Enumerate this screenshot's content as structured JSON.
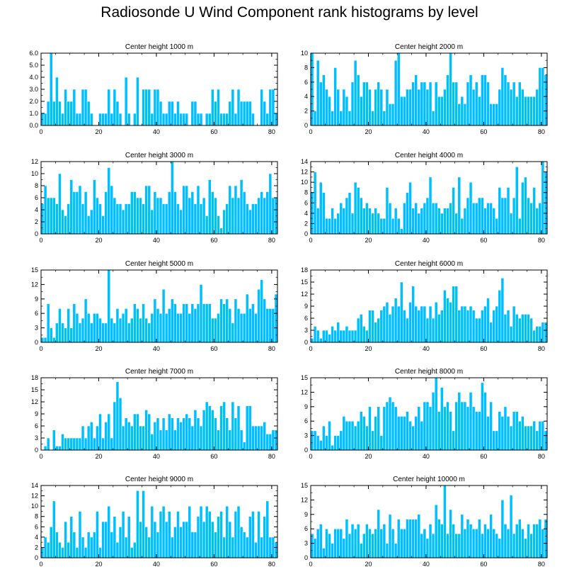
{
  "figure_title": "Radiosonde U Wind Component rank histograms by level",
  "colors": {
    "bar_fill": "#00bfff",
    "bar_stroke": "#ffffff",
    "axis": "#000000"
  },
  "chart_data": [
    {
      "type": "bar",
      "title": "Center height 1000 m",
      "xlim": [
        0,
        82
      ],
      "ylim": [
        0,
        6
      ],
      "xticks": [
        0,
        20,
        40,
        60,
        80
      ],
      "yticks": [
        0,
        1,
        2,
        3,
        4,
        5,
        6
      ],
      "ytick_labels": [
        "0.0",
        "1.0",
        "2.0",
        "3.0",
        "4.0",
        "5.0",
        "6.0"
      ],
      "values": [
        1,
        1,
        2,
        6,
        2,
        4,
        2,
        1,
        3,
        2,
        2,
        3,
        1,
        1,
        3,
        3,
        2,
        1,
        0,
        0,
        1,
        1,
        1,
        3,
        1,
        3,
        2,
        1,
        0,
        4,
        1,
        0,
        1,
        4,
        0,
        3,
        3,
        3,
        1,
        3,
        3,
        2,
        1,
        1,
        2,
        2,
        1,
        2,
        1,
        1,
        1,
        0,
        2,
        2,
        1,
        1,
        0,
        1,
        1,
        3,
        2,
        3,
        1,
        1,
        1,
        2,
        3,
        1,
        3,
        2,
        2,
        2,
        2,
        1,
        0,
        0,
        3,
        2,
        1,
        3,
        3,
        1
      ]
    },
    {
      "type": "bar",
      "title": "Center height 2000 m",
      "xlim": [
        0,
        82
      ],
      "ylim": [
        0,
        10
      ],
      "xticks": [
        0,
        20,
        40,
        60,
        80
      ],
      "yticks": [
        0,
        2,
        4,
        6,
        8,
        10
      ],
      "ytick_labels": [
        "0",
        "2",
        "4",
        "6",
        "8",
        "10"
      ],
      "values": [
        10,
        2,
        9,
        6,
        7,
        5,
        4,
        2,
        8,
        5,
        2,
        5,
        4,
        2,
        6,
        9,
        7,
        4,
        6,
        6,
        5,
        2,
        5,
        6,
        5,
        2,
        5,
        3,
        3,
        9,
        10,
        4,
        4,
        5,
        5,
        6,
        7,
        5,
        6,
        6,
        5,
        6,
        2,
        6,
        4,
        4,
        5,
        7,
        10,
        6,
        6,
        3,
        4,
        3,
        6,
        7,
        5,
        6,
        4,
        7,
        7,
        6,
        3,
        3,
        3,
        5,
        8,
        7,
        6,
        5,
        6,
        4,
        6,
        5,
        4,
        4,
        4,
        4,
        5,
        8,
        8,
        7
      ]
    },
    {
      "type": "bar",
      "title": "Center height 3000 m",
      "xlim": [
        0,
        82
      ],
      "ylim": [
        0,
        12
      ],
      "xticks": [
        0,
        20,
        40,
        60,
        80
      ],
      "yticks": [
        0,
        2,
        4,
        6,
        8,
        10,
        12
      ],
      "ytick_labels": [
        "0",
        "2",
        "4",
        "6",
        "8",
        "10",
        "12"
      ],
      "values": [
        5,
        8,
        6,
        6,
        6,
        5,
        10,
        4,
        3,
        5,
        9,
        7,
        7,
        8,
        5,
        7,
        3,
        4,
        9,
        6,
        5,
        3,
        7,
        11,
        8,
        6,
        5,
        5,
        4,
        5,
        5,
        7,
        7,
        6,
        6,
        5,
        8,
        8,
        4,
        7,
        6,
        6,
        5,
        5,
        7,
        12,
        7,
        5,
        4,
        8,
        8,
        6,
        7,
        5,
        8,
        5,
        6,
        3,
        9,
        7,
        6,
        3,
        1,
        4,
        5,
        8,
        6,
        8,
        6,
        9,
        7,
        5,
        4,
        5,
        5,
        6,
        7,
        6,
        7,
        10,
        6,
        6
      ]
    },
    {
      "type": "bar",
      "title": "Center height 4000 m",
      "xlim": [
        0,
        82
      ],
      "ylim": [
        0,
        14
      ],
      "xticks": [
        0,
        20,
        40,
        60,
        80
      ],
      "yticks": [
        0,
        2,
        4,
        6,
        8,
        10,
        12,
        14
      ],
      "ytick_labels": [
        "0",
        "2",
        "4",
        "6",
        "8",
        "10",
        "12",
        "14"
      ],
      "values": [
        8,
        12,
        5,
        10,
        8,
        3,
        3,
        5,
        3,
        4,
        6,
        5,
        7,
        8,
        4,
        10,
        9,
        7,
        5,
        6,
        5,
        4,
        5,
        4,
        3,
        3,
        9,
        6,
        3,
        5,
        3,
        1,
        6,
        8,
        10,
        5,
        6,
        4,
        5,
        6,
        7,
        11,
        6,
        6,
        5,
        4,
        5,
        5,
        6,
        9,
        4,
        11,
        3,
        5,
        7,
        10,
        6,
        6,
        7,
        7,
        5,
        6,
        6,
        5,
        3,
        9,
        7,
        7,
        9,
        4,
        7,
        13,
        3,
        10,
        11,
        7,
        6,
        9,
        5,
        6,
        14,
        12
      ]
    },
    {
      "type": "bar",
      "title": "Center height 5000 m",
      "xlim": [
        0,
        82
      ],
      "ylim": [
        0,
        15
      ],
      "xticks": [
        0,
        20,
        40,
        60,
        80
      ],
      "yticks": [
        0,
        3,
        6,
        9,
        12,
        15
      ],
      "ytick_labels": [
        "0",
        "3",
        "6",
        "9",
        "12",
        "15"
      ],
      "values": [
        1,
        1,
        8,
        3,
        1,
        4,
        7,
        4,
        3,
        7,
        3,
        8,
        6,
        4,
        5,
        9,
        6,
        4,
        6,
        6,
        5,
        4,
        4,
        15,
        5,
        4,
        7,
        5,
        6,
        7,
        4,
        5,
        8,
        7,
        5,
        8,
        5,
        4,
        6,
        9,
        7,
        6,
        11,
        6,
        7,
        9,
        8,
        6,
        6,
        8,
        8,
        6,
        8,
        7,
        8,
        12,
        8,
        8,
        8,
        5,
        5,
        6,
        9,
        8,
        9,
        7,
        4,
        9,
        7,
        6,
        6,
        10,
        7,
        8,
        6,
        11,
        13,
        9,
        7,
        7,
        7,
        10
      ]
    },
    {
      "type": "bar",
      "title": "Center height 6000 m",
      "xlim": [
        0,
        82
      ],
      "ylim": [
        0,
        18
      ],
      "xticks": [
        0,
        20,
        40,
        60,
        80
      ],
      "yticks": [
        0,
        3,
        6,
        9,
        12,
        15,
        18
      ],
      "ytick_labels": [
        "0",
        "3",
        "6",
        "9",
        "12",
        "15",
        "18"
      ],
      "values": [
        1,
        4,
        3,
        1,
        3,
        3,
        2,
        4,
        3,
        5,
        3,
        3,
        4,
        3,
        3,
        3,
        6,
        7,
        4,
        3,
        8,
        8,
        5,
        6,
        8,
        9,
        10,
        7,
        9,
        11,
        9,
        15,
        8,
        6,
        10,
        14,
        9,
        8,
        9,
        9,
        6,
        9,
        6,
        10,
        7,
        8,
        13,
        11,
        10,
        14,
        14,
        8,
        9,
        9,
        8,
        9,
        8,
        6,
        6,
        8,
        9,
        11,
        5,
        8,
        9,
        13,
        16,
        7,
        8,
        4,
        9,
        7,
        6,
        7,
        7,
        7,
        6,
        3,
        4,
        4,
        5,
        5
      ]
    },
    {
      "type": "bar",
      "title": "Center height 7000 m",
      "xlim": [
        0,
        82
      ],
      "ylim": [
        0,
        18
      ],
      "xticks": [
        0,
        20,
        40,
        60,
        80
      ],
      "yticks": [
        0,
        3,
        6,
        9,
        12,
        15,
        18
      ],
      "ytick_labels": [
        "0",
        "3",
        "6",
        "9",
        "12",
        "15",
        "18"
      ],
      "values": [
        0,
        1,
        3,
        0,
        5,
        1,
        1,
        4,
        3,
        3,
        3,
        3,
        3,
        3,
        6,
        3,
        6,
        7,
        3,
        6,
        9,
        3,
        7,
        9,
        3,
        12,
        17,
        13,
        6,
        8,
        7,
        6,
        9,
        9,
        6,
        6,
        10,
        9,
        4,
        7,
        8,
        5,
        8,
        5,
        9,
        8,
        5,
        8,
        7,
        8,
        9,
        8,
        6,
        10,
        8,
        6,
        10,
        12,
        11,
        10,
        8,
        5,
        11,
        12,
        8,
        5,
        12,
        8,
        11,
        5,
        2,
        11,
        11,
        6,
        6,
        6,
        6,
        7,
        4,
        4,
        5,
        5
      ]
    },
    {
      "type": "bar",
      "title": "Center height 8000 m",
      "xlim": [
        0,
        82
      ],
      "ylim": [
        0,
        15
      ],
      "xticks": [
        0,
        20,
        40,
        60,
        80
      ],
      "yticks": [
        0,
        3,
        6,
        9,
        12,
        15
      ],
      "ytick_labels": [
        "0",
        "3",
        "6",
        "9",
        "12",
        "15"
      ],
      "values": [
        4,
        4,
        3,
        2,
        5,
        3,
        6,
        1,
        3,
        3,
        4,
        7,
        6,
        6,
        6,
        5,
        6,
        8,
        7,
        5,
        9,
        4,
        7,
        9,
        3,
        9,
        10,
        11,
        10,
        9,
        7,
        7,
        7,
        8,
        6,
        5,
        7,
        9,
        6,
        10,
        10,
        9,
        12,
        15,
        8,
        13,
        9,
        10,
        8,
        4,
        10,
        12,
        10,
        10,
        9,
        12,
        9,
        8,
        8,
        14,
        12,
        7,
        10,
        4,
        4,
        8,
        7,
        9,
        7,
        5,
        8,
        8,
        6,
        7,
        5,
        5,
        5,
        6,
        4,
        6,
        6,
        4
      ]
    },
    {
      "type": "bar",
      "title": "Center height 9000 m",
      "xlim": [
        0,
        82
      ],
      "ylim": [
        0,
        14
      ],
      "xticks": [
        0,
        20,
        40,
        60,
        80
      ],
      "yticks": [
        0,
        2,
        4,
        6,
        8,
        10,
        12,
        14
      ],
      "ytick_labels": [
        "0",
        "2",
        "4",
        "6",
        "8",
        "10",
        "12",
        "14"
      ],
      "values": [
        2,
        4,
        3,
        6,
        11,
        5,
        3,
        2,
        7,
        3,
        8,
        5,
        2,
        9,
        4,
        2,
        5,
        4,
        5,
        9,
        2,
        7,
        7,
        10,
        5,
        8,
        3,
        6,
        9,
        4,
        8,
        2,
        3,
        13,
        7,
        13,
        6,
        4,
        10,
        7,
        5,
        9,
        10,
        7,
        9,
        4,
        6,
        9,
        6,
        7,
        7,
        10,
        5,
        5,
        8,
        10,
        7,
        10,
        9,
        7,
        5,
        8,
        9,
        4,
        10,
        7,
        4,
        9,
        10,
        6,
        5,
        4,
        8,
        9,
        3,
        9,
        4,
        8,
        11,
        4,
        4,
        3
      ]
    },
    {
      "type": "bar",
      "title": "Center height 10000 m",
      "xlim": [
        0,
        82
      ],
      "ylim": [
        0,
        15
      ],
      "xticks": [
        0,
        20,
        40,
        60,
        80
      ],
      "yticks": [
        0,
        3,
        6,
        9,
        12,
        15
      ],
      "ytick_labels": [
        "0",
        "3",
        "6",
        "9",
        "12",
        "15"
      ],
      "values": [
        5,
        4,
        6,
        7,
        2,
        6,
        5,
        3,
        6,
        6,
        6,
        4,
        8,
        5,
        7,
        6,
        7,
        3,
        5,
        7,
        6,
        5,
        6,
        10,
        6,
        7,
        3,
        9,
        6,
        3,
        8,
        6,
        6,
        8,
        8,
        8,
        8,
        9,
        5,
        6,
        4,
        7,
        5,
        11,
        8,
        7,
        15,
        5,
        10,
        7,
        5,
        5,
        9,
        6,
        8,
        7,
        6,
        6,
        8,
        5,
        7,
        6,
        9,
        6,
        5,
        4,
        12,
        7,
        6,
        13,
        5,
        7,
        8,
        6,
        4,
        7,
        5,
        7,
        7,
        8,
        6,
        8
      ]
    }
  ]
}
